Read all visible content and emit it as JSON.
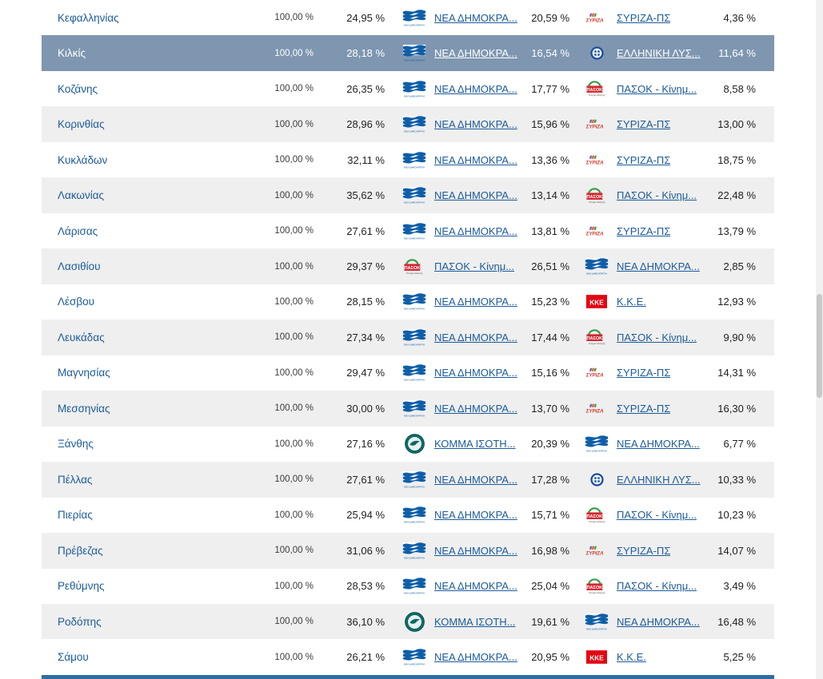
{
  "colors": {
    "link_blue": "#1c5b9c",
    "alt_row_bg": "#efefef",
    "highlight_bg": "#7e96b0",
    "bottom_bar": "#2e6da4",
    "percent_text": "#1f1f1f"
  },
  "rows": [
    {
      "region": "Κεφαλληνίας",
      "counted": "100,00 %",
      "first": {
        "pct": "24,95 %",
        "party": "ΝΕΑ ΔΗΜΟΚΡΑ...",
        "logo": "nd-logo"
      },
      "second": {
        "pct": "20,59 %",
        "party": "ΣΥΡΙΖΑ-ΠΣ",
        "logo": "syriza-logo"
      },
      "margin": "4,36 %",
      "highlighted": false
    },
    {
      "region": "Κιλκίς",
      "counted": "100,00 %",
      "first": {
        "pct": "28,18 %",
        "party": "ΝΕΑ ΔΗΜΟΚΡΑ...",
        "logo": "nd-logo"
      },
      "second": {
        "pct": "16,54 %",
        "party": "ΕΛΛΗΝΙΚΗ ΛΥΣ...",
        "logo": "elliniki-lysi-logo"
      },
      "margin": "11,64 %",
      "highlighted": true
    },
    {
      "region": "Κοζάνης",
      "counted": "100,00 %",
      "first": {
        "pct": "26,35 %",
        "party": "ΝΕΑ ΔΗΜΟΚΡΑ...",
        "logo": "nd-logo"
      },
      "second": {
        "pct": "17,77 %",
        "party": "ΠΑΣΟΚ - Κίνημ...",
        "logo": "pasok-logo"
      },
      "margin": "8,58 %",
      "highlighted": false
    },
    {
      "region": "Κορινθίας",
      "counted": "100,00 %",
      "first": {
        "pct": "28,96 %",
        "party": "ΝΕΑ ΔΗΜΟΚΡΑ...",
        "logo": "nd-logo"
      },
      "second": {
        "pct": "15,96 %",
        "party": "ΣΥΡΙΖΑ-ΠΣ",
        "logo": "syriza-logo"
      },
      "margin": "13,00 %",
      "highlighted": false
    },
    {
      "region": "Κυκλάδων",
      "counted": "100,00 %",
      "first": {
        "pct": "32,11 %",
        "party": "ΝΕΑ ΔΗΜΟΚΡΑ...",
        "logo": "nd-logo"
      },
      "second": {
        "pct": "13,36 %",
        "party": "ΣΥΡΙΖΑ-ΠΣ",
        "logo": "syriza-logo"
      },
      "margin": "18,75 %",
      "highlighted": false
    },
    {
      "region": "Λακωνίας",
      "counted": "100,00 %",
      "first": {
        "pct": "35,62 %",
        "party": "ΝΕΑ ΔΗΜΟΚΡΑ...",
        "logo": "nd-logo"
      },
      "second": {
        "pct": "13,14 %",
        "party": "ΠΑΣΟΚ - Κίνημ...",
        "logo": "pasok-logo"
      },
      "margin": "22,48 %",
      "highlighted": false
    },
    {
      "region": "Λάρισας",
      "counted": "100,00 %",
      "first": {
        "pct": "27,61 %",
        "party": "ΝΕΑ ΔΗΜΟΚΡΑ...",
        "logo": "nd-logo"
      },
      "second": {
        "pct": "13,81 %",
        "party": "ΣΥΡΙΖΑ-ΠΣ",
        "logo": "syriza-logo"
      },
      "margin": "13,79 %",
      "highlighted": false
    },
    {
      "region": "Λασιθίου",
      "counted": "100,00 %",
      "first": {
        "pct": "29,37 %",
        "party": "ΠΑΣΟΚ - Κίνημ...",
        "logo": "pasok-logo"
      },
      "second": {
        "pct": "26,51 %",
        "party": "ΝΕΑ ΔΗΜΟΚΡΑ...",
        "logo": "nd-logo"
      },
      "margin": "2,85 %",
      "highlighted": false
    },
    {
      "region": "Λέσβου",
      "counted": "100,00 %",
      "first": {
        "pct": "28,15 %",
        "party": "ΝΕΑ ΔΗΜΟΚΡΑ...",
        "logo": "nd-logo"
      },
      "second": {
        "pct": "15,23 %",
        "party": "Κ.Κ.Ε.",
        "logo": "kke-logo"
      },
      "margin": "12,93 %",
      "highlighted": false
    },
    {
      "region": "Λευκάδας",
      "counted": "100,00 %",
      "first": {
        "pct": "27,34 %",
        "party": "ΝΕΑ ΔΗΜΟΚΡΑ...",
        "logo": "nd-logo"
      },
      "second": {
        "pct": "17,44 %",
        "party": "ΠΑΣΟΚ - Κίνημ...",
        "logo": "pasok-logo"
      },
      "margin": "9,90 %",
      "highlighted": false
    },
    {
      "region": "Μαγνησίας",
      "counted": "100,00 %",
      "first": {
        "pct": "29,47 %",
        "party": "ΝΕΑ ΔΗΜΟΚΡΑ...",
        "logo": "nd-logo"
      },
      "second": {
        "pct": "15,16 %",
        "party": "ΣΥΡΙΖΑ-ΠΣ",
        "logo": "syriza-logo"
      },
      "margin": "14,31 %",
      "highlighted": false
    },
    {
      "region": "Μεσσηνίας",
      "counted": "100,00 %",
      "first": {
        "pct": "30,00 %",
        "party": "ΝΕΑ ΔΗΜΟΚΡΑ...",
        "logo": "nd-logo"
      },
      "second": {
        "pct": "13,70 %",
        "party": "ΣΥΡΙΖΑ-ΠΣ",
        "logo": "syriza-logo"
      },
      "margin": "16,30 %",
      "highlighted": false
    },
    {
      "region": "Ξάνθης",
      "counted": "100,00 %",
      "first": {
        "pct": "27,16 %",
        "party": "ΚΟΜΜΑ ΙΣΟΤΗ...",
        "logo": "komma-isotitas-logo"
      },
      "second": {
        "pct": "20,39 %",
        "party": "ΝΕΑ ΔΗΜΟΚΡΑ...",
        "logo": "nd-logo"
      },
      "margin": "6,77 %",
      "highlighted": false
    },
    {
      "region": "Πέλλας",
      "counted": "100,00 %",
      "first": {
        "pct": "27,61 %",
        "party": "ΝΕΑ ΔΗΜΟΚΡΑ...",
        "logo": "nd-logo"
      },
      "second": {
        "pct": "17,28 %",
        "party": "ΕΛΛΗΝΙΚΗ ΛΥΣ...",
        "logo": "elliniki-lysi-logo"
      },
      "margin": "10,33 %",
      "highlighted": false
    },
    {
      "region": "Πιερίας",
      "counted": "100,00 %",
      "first": {
        "pct": "25,94 %",
        "party": "ΝΕΑ ΔΗΜΟΚΡΑ...",
        "logo": "nd-logo"
      },
      "second": {
        "pct": "15,71 %",
        "party": "ΠΑΣΟΚ - Κίνημ...",
        "logo": "pasok-logo"
      },
      "margin": "10,23 %",
      "highlighted": false
    },
    {
      "region": "Πρέβεζας",
      "counted": "100,00 %",
      "first": {
        "pct": "31,06 %",
        "party": "ΝΕΑ ΔΗΜΟΚΡΑ...",
        "logo": "nd-logo"
      },
      "second": {
        "pct": "16,98 %",
        "party": "ΣΥΡΙΖΑ-ΠΣ",
        "logo": "syriza-logo"
      },
      "margin": "14,07 %",
      "highlighted": false
    },
    {
      "region": "Ρεθύμνης",
      "counted": "100,00 %",
      "first": {
        "pct": "28,53 %",
        "party": "ΝΕΑ ΔΗΜΟΚΡΑ...",
        "logo": "nd-logo"
      },
      "second": {
        "pct": "25,04 %",
        "party": "ΠΑΣΟΚ - Κίνημ...",
        "logo": "pasok-logo"
      },
      "margin": "3,49 %",
      "highlighted": false
    },
    {
      "region": "Ροδόπης",
      "counted": "100,00 %",
      "first": {
        "pct": "36,10 %",
        "party": "ΚΟΜΜΑ ΙΣΟΤΗ...",
        "logo": "komma-isotitas-logo"
      },
      "second": {
        "pct": "19,61 %",
        "party": "ΝΕΑ ΔΗΜΟΚΡΑ...",
        "logo": "nd-logo"
      },
      "margin": "16,48 %",
      "highlighted": false
    },
    {
      "region": "Σάμου",
      "counted": "100,00 %",
      "first": {
        "pct": "26,21 %",
        "party": "ΝΕΑ ΔΗΜΟΚΡΑ...",
        "logo": "nd-logo"
      },
      "second": {
        "pct": "20,95 %",
        "party": "Κ.Κ.Ε.",
        "logo": "kke-logo"
      },
      "margin": "5,25 %",
      "highlighted": false
    }
  ]
}
